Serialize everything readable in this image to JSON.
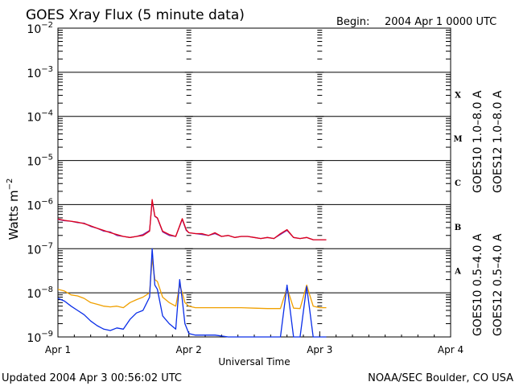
{
  "header": {
    "title": "GOES Xray Flux (5 minute data)",
    "begin_label": "Begin:",
    "begin_value": "2004 Apr 1 0000 UTC"
  },
  "footer": {
    "updated": "Updated 2004 Apr  3 00:56:02 UTC",
    "source": "NOAA/SEC Boulder, CO USA"
  },
  "axis": {
    "ylabel_main": "Watts m",
    "ylabel_exp": "−2",
    "xlabel": "Universal Time"
  },
  "legend": {
    "goes10_long": "GOES10 1.0–8.0 A",
    "goes12_long": "GOES12 1.0–8.0 A",
    "goes10_short": "GOES10 0.5–4.0 A",
    "goes12_short": "GOES12 0.5–4.0 A"
  },
  "colors": {
    "goes10_long": "#7b2fb0",
    "goes12_long": "#e0001a",
    "goes10_short": "#f0a000",
    "goes12_short": "#0a2ee8"
  },
  "chart_data": {
    "type": "line",
    "title": "GOES Xray Flux (5 minute data)",
    "ylabel": "Watts m-2",
    "xlabel": "Universal Time",
    "yscale": "log",
    "ylim": [
      1e-09,
      0.01
    ],
    "xlim_days": [
      0,
      3
    ],
    "y_ticks": [
      {
        "v": -9,
        "base": "10",
        "exp": "−9"
      },
      {
        "v": -8,
        "base": "10",
        "exp": "−8"
      },
      {
        "v": -7,
        "base": "10",
        "exp": "−7"
      },
      {
        "v": -6,
        "base": "10",
        "exp": "−6"
      },
      {
        "v": -5,
        "base": "10",
        "exp": "−5"
      },
      {
        "v": -4,
        "base": "10",
        "exp": "−4"
      },
      {
        "v": -3,
        "base": "10",
        "exp": "−3"
      },
      {
        "v": -2,
        "base": "10",
        "exp": "−2"
      }
    ],
    "x_ticks": [
      {
        "v": 0,
        "label": "Apr 1"
      },
      {
        "v": 1,
        "label": "Apr 2"
      },
      {
        "v": 2,
        "label": "Apr 3"
      },
      {
        "v": 3,
        "label": "Apr 4"
      }
    ],
    "flare_classes": [
      {
        "label": "A",
        "center": -7.5
      },
      {
        "label": "B",
        "center": -6.5
      },
      {
        "label": "C",
        "center": -5.5
      },
      {
        "label": "M",
        "center": -4.5
      },
      {
        "label": "X",
        "center": -3.5
      }
    ],
    "grid": true,
    "series": [
      {
        "name": "GOES10 1.0–8.0 A",
        "key": "goes10_long",
        "x": [
          0.0,
          0.05,
          0.1,
          0.15,
          0.2,
          0.25,
          0.3,
          0.35,
          0.4,
          0.45,
          0.5,
          0.55,
          0.6,
          0.65,
          0.7,
          0.72,
          0.74,
          0.76,
          0.8,
          0.85,
          0.9,
          0.95,
          0.98,
          1.0,
          1.05,
          1.1,
          1.15,
          1.2,
          1.25,
          1.3,
          1.35,
          1.4,
          1.45,
          1.5,
          1.55,
          1.6,
          1.65,
          1.7,
          1.75,
          1.8,
          1.85,
          1.9,
          1.95,
          2.0,
          2.05
        ],
        "y": [
          4.6e-07,
          4.3e-07,
          4.2e-07,
          3.9e-07,
          3.8e-07,
          3.2e-07,
          2.9e-07,
          2.5e-07,
          2.4e-07,
          2e-07,
          1.9e-07,
          1.8e-07,
          1.9e-07,
          2.1e-07,
          2.6e-07,
          1.2e-06,
          5.4e-07,
          4.9e-07,
          2.4e-07,
          2e-07,
          1.9e-07,
          4.6e-07,
          2.6e-07,
          2.3e-07,
          2.2e-07,
          2.1e-07,
          2e-07,
          2.2e-07,
          1.9e-07,
          2e-07,
          1.8e-07,
          1.9e-07,
          1.9e-07,
          1.8e-07,
          1.7e-07,
          1.8e-07,
          1.7e-07,
          2.1e-07,
          2.6e-07,
          1.8e-07,
          1.7e-07,
          1.8e-07,
          1.6e-07,
          1.6e-07,
          1.6e-07
        ]
      },
      {
        "name": "GOES12 1.0–8.0 A",
        "key": "goes12_long",
        "x": [
          0.0,
          0.05,
          0.1,
          0.15,
          0.2,
          0.25,
          0.3,
          0.35,
          0.4,
          0.45,
          0.5,
          0.55,
          0.6,
          0.65,
          0.7,
          0.72,
          0.74,
          0.76,
          0.8,
          0.85,
          0.9,
          0.95,
          0.98,
          1.0,
          1.05,
          1.1,
          1.15,
          1.2,
          1.25,
          1.3,
          1.35,
          1.4,
          1.45,
          1.5,
          1.55,
          1.6,
          1.65,
          1.7,
          1.75,
          1.8,
          1.85,
          1.9,
          1.95,
          2.0,
          2.05
        ],
        "y": [
          4.7e-07,
          4.4e-07,
          4.2e-07,
          4e-07,
          3.7e-07,
          3.3e-07,
          2.9e-07,
          2.6e-07,
          2.3e-07,
          2.1e-07,
          1.9e-07,
          1.8e-07,
          1.9e-07,
          2e-07,
          2.5e-07,
          1.3e-06,
          5.5e-07,
          5e-07,
          2.5e-07,
          2.1e-07,
          1.9e-07,
          4.8e-07,
          2.7e-07,
          2.3e-07,
          2.2e-07,
          2.2e-07,
          2e-07,
          2.3e-07,
          1.9e-07,
          2e-07,
          1.8e-07,
          1.9e-07,
          1.9e-07,
          1.8e-07,
          1.7e-07,
          1.8e-07,
          1.7e-07,
          2.2e-07,
          2.7e-07,
          1.8e-07,
          1.7e-07,
          1.8e-07,
          1.6e-07,
          1.6e-07,
          1.6e-07
        ]
      },
      {
        "name": "GOES10 0.5–4.0 A",
        "key": "goes10_short",
        "x": [
          0.0,
          0.05,
          0.1,
          0.15,
          0.2,
          0.25,
          0.3,
          0.35,
          0.4,
          0.45,
          0.5,
          0.55,
          0.6,
          0.65,
          0.7,
          0.72,
          0.74,
          0.76,
          0.8,
          0.85,
          0.9,
          0.93,
          0.95,
          0.97,
          1.0,
          1.05,
          1.1,
          1.2,
          1.3,
          1.4,
          1.5,
          1.6,
          1.7,
          1.75,
          1.8,
          1.85,
          1.9,
          1.95,
          2.0,
          2.05
        ],
        "y": [
          1.2e-08,
          1.1e-08,
          9e-09,
          8.5e-09,
          7.5e-09,
          6e-09,
          5.5e-09,
          5e-09,
          4.8e-09,
          5e-09,
          4.6e-09,
          6e-09,
          7e-09,
          8e-09,
          1e-08,
          6e-08,
          2e-08,
          1.8e-08,
          8e-09,
          6e-09,
          5e-09,
          1.5e-08,
          1e-08,
          6e-09,
          5e-09,
          4.6e-09,
          4.6e-09,
          4.6e-09,
          4.6e-09,
          4.6e-09,
          4.5e-09,
          4.4e-09,
          4.4e-09,
          1.3e-08,
          4.5e-09,
          4.4e-09,
          1.5e-08,
          5e-09,
          4.6e-09,
          4.6e-09
        ]
      },
      {
        "name": "GOES12 0.5–4.0 A",
        "key": "goes12_short",
        "x": [
          0.0,
          0.05,
          0.1,
          0.15,
          0.2,
          0.25,
          0.3,
          0.35,
          0.4,
          0.45,
          0.5,
          0.55,
          0.6,
          0.65,
          0.7,
          0.72,
          0.74,
          0.76,
          0.8,
          0.85,
          0.9,
          0.93,
          0.95,
          0.97,
          1.0,
          1.05,
          1.1,
          1.2,
          1.3,
          1.4,
          1.5,
          1.6,
          1.7,
          1.75,
          1.8,
          1.85,
          1.9,
          1.95,
          2.0,
          2.05
        ],
        "y": [
          7.5e-09,
          6.5e-09,
          5e-09,
          4e-09,
          3.2e-09,
          2.3e-09,
          1.8e-09,
          1.5e-09,
          1.4e-09,
          1.6e-09,
          1.5e-09,
          2.5e-09,
          3.5e-09,
          4e-09,
          8e-09,
          1e-07,
          1.5e-08,
          1.2e-08,
          3e-09,
          2e-09,
          1.5e-09,
          2e-08,
          7e-09,
          2e-09,
          1.2e-09,
          1.1e-09,
          1.1e-09,
          1.1e-09,
          1e-09,
          1e-09,
          1e-09,
          1e-09,
          1e-09,
          1.5e-08,
          1e-09,
          1e-09,
          1.4e-08,
          1e-09,
          1e-09,
          1e-09
        ]
      }
    ]
  }
}
